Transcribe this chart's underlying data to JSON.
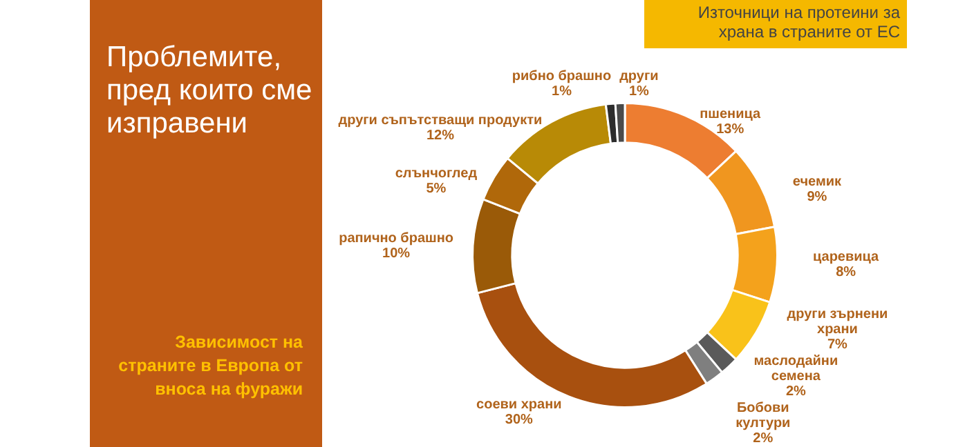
{
  "chart_data": {
    "type": "donut",
    "title": "Проблемите, пред които сме изправени",
    "subtitle": "Зависимост на страните в Европа от вноса на фуражи",
    "annotations": [
      "Източници на протеини за храна в страните от ЕС"
    ],
    "categories": [
      "пшеница",
      "ечемик",
      "царевица",
      "други зърнени храни",
      "маслодайни семена",
      "Бобови култури",
      "соеви храни",
      "рапично брашно",
      "слънчоглед",
      "други съпътстващи продукти",
      "рибно брашно",
      "други"
    ],
    "values": [
      13,
      9,
      8,
      7,
      2,
      2,
      30,
      10,
      5,
      12,
      1,
      1
    ],
    "colors": [
      "#ed7d31",
      "#f0961f",
      "#f4a21c",
      "#f9c21a",
      "#5a5a5a",
      "#7f7f7f",
      "#a8500f",
      "#9a5a08",
      "#b0680a",
      "#b88a06",
      "#2d2d2d",
      "#4a4a4a"
    ],
    "value_labels": [
      "13%",
      "9%",
      "8%",
      "7%",
      "2%",
      "2%",
      "30%",
      "10%",
      "5%",
      "12%",
      "1%",
      "1%"
    ],
    "legend": false
  }
}
